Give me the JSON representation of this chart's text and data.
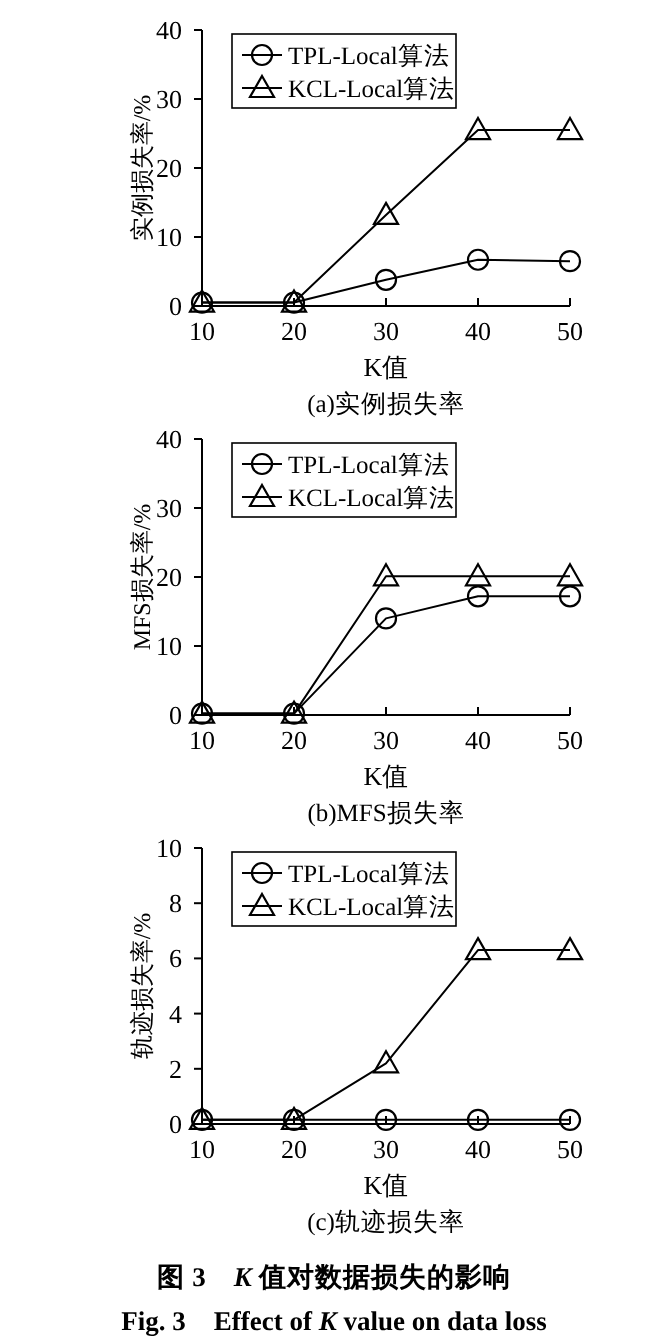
{
  "chart_data": [
    {
      "type": "line",
      "title": "(a)实例损失率",
      "xlabel": "K值",
      "ylabel": "实例损失率/%",
      "x": [
        10,
        20,
        30,
        40,
        50
      ],
      "xlim": [
        10,
        50
      ],
      "xticks": [
        10,
        20,
        30,
        40,
        50
      ],
      "ylim": [
        0,
        40
      ],
      "yticks": [
        0,
        10,
        20,
        30,
        40
      ],
      "legend": "top left",
      "series": [
        {
          "name": "TPL-Local算法",
          "color": "#000000",
          "marker": "circle",
          "values": [
            0.5,
            0.5,
            3.8,
            6.7,
            6.5
          ]
        },
        {
          "name": "KCL-Local算法",
          "color": "#000000",
          "marker": "triangle",
          "values": [
            0.5,
            0.5,
            13.2,
            25.5,
            25.5
          ]
        }
      ]
    },
    {
      "type": "line",
      "title": "(b)MFS损失率",
      "xlabel": "K值",
      "ylabel": "MFS损失率/%",
      "x": [
        10,
        20,
        30,
        40,
        50
      ],
      "xlim": [
        10,
        50
      ],
      "xticks": [
        10,
        20,
        30,
        40,
        50
      ],
      "ylim": [
        0,
        40
      ],
      "yticks": [
        0,
        10,
        20,
        30,
        40
      ],
      "legend": "top left",
      "series": [
        {
          "name": "TPL-Local算法",
          "color": "#000000",
          "marker": "circle",
          "values": [
            0.2,
            0.2,
            14,
            17.2,
            17.2
          ]
        },
        {
          "name": "KCL-Local算法",
          "color": "#000000",
          "marker": "triangle",
          "values": [
            0.2,
            0.2,
            20.1,
            20.1,
            20.1
          ]
        }
      ]
    },
    {
      "type": "line",
      "title": "(c)轨迹损失率",
      "xlabel": "K值",
      "ylabel": "轨迹损失率/%",
      "x": [
        10,
        20,
        30,
        40,
        50
      ],
      "xlim": [
        10,
        50
      ],
      "xticks": [
        10,
        20,
        30,
        40,
        50
      ],
      "ylim": [
        0,
        10
      ],
      "yticks": [
        0,
        2,
        4,
        6,
        8,
        10
      ],
      "legend": "top left",
      "annotations": [
        "图 3　*K* 值对数据损失的影响",
        "Fig. 3　Effect of *K* value on data loss"
      ],
      "series": [
        {
          "name": "TPL-Local算法",
          "color": "#000000",
          "marker": "circle",
          "values": [
            0.15,
            0.15,
            0.15,
            0.15,
            0.15
          ]
        },
        {
          "name": "KCL-Local算法",
          "color": "#000000",
          "marker": "triangle",
          "values": [
            0.15,
            0.15,
            2.2,
            6.3,
            6.3
          ]
        }
      ]
    }
  ]
}
